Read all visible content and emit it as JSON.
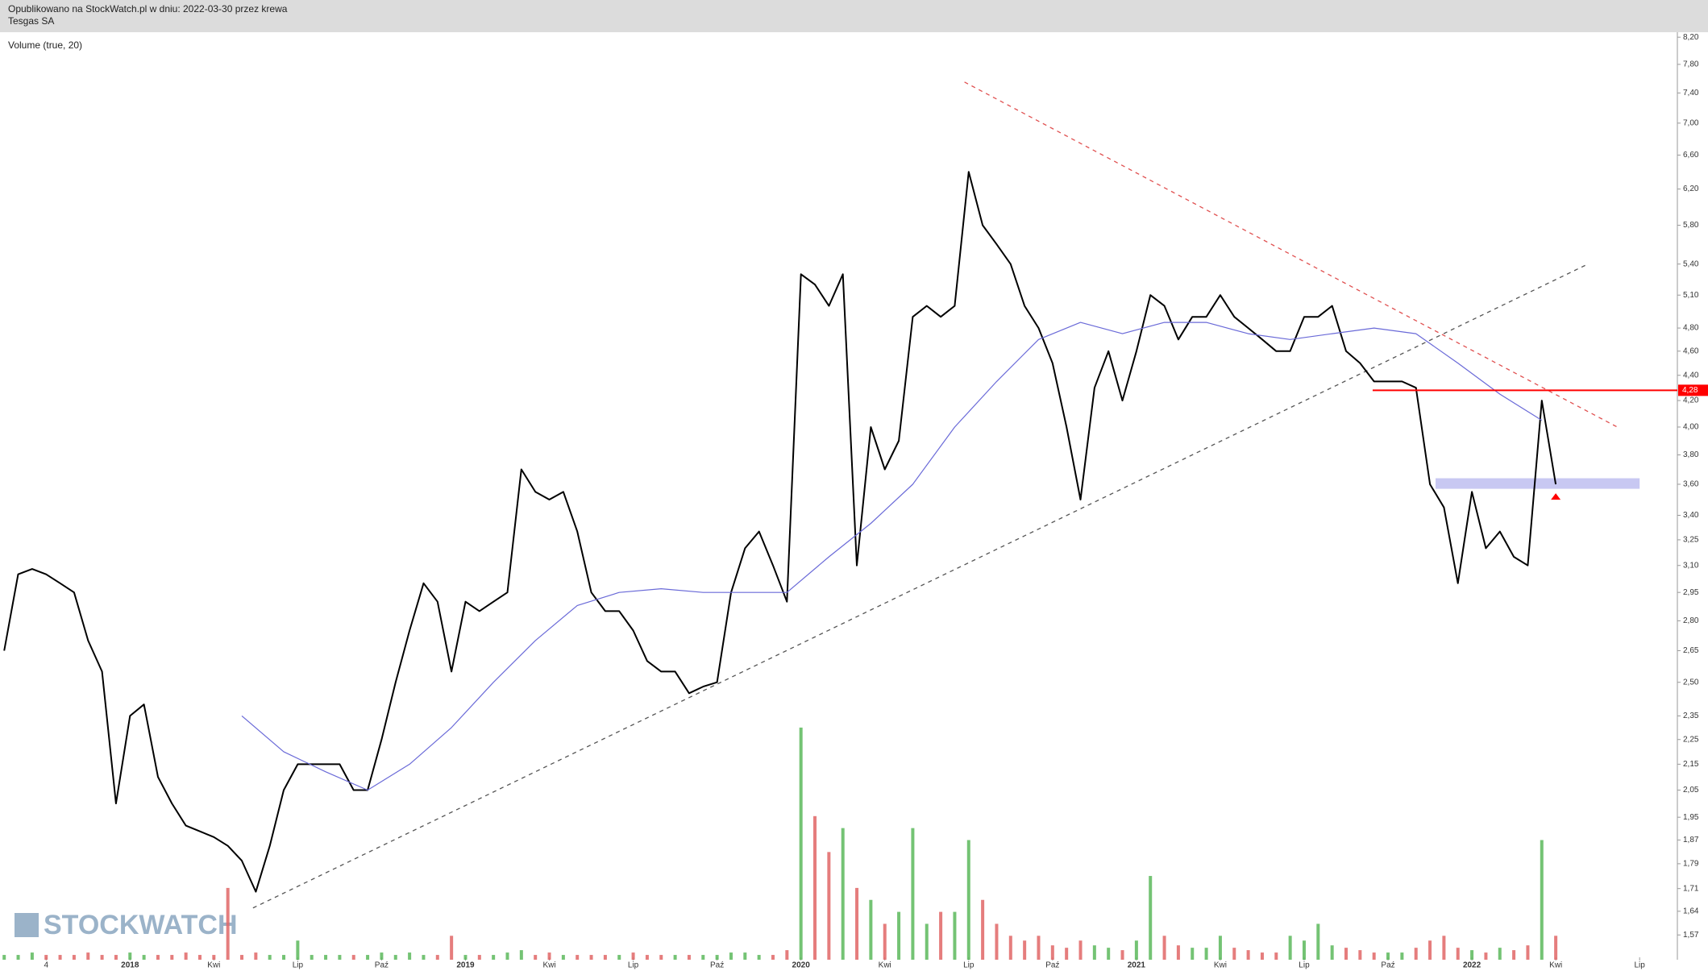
{
  "header": {
    "published": "Opublikowano na StockWatch.pl w dniu: 2022-03-30 przez krewa",
    "ticker": "Tesgas SA"
  },
  "chart_data": {
    "type": "line",
    "indicator_label": "Volume (true, 20)",
    "watermark": "STOCKWATCH",
    "log_scale": true,
    "ylim": [
      1.5,
      8.3
    ],
    "yticks": [
      {
        "value": 8.2,
        "label": "8,20"
      },
      {
        "value": 7.8,
        "label": "7,80"
      },
      {
        "value": 7.4,
        "label": "7,40"
      },
      {
        "value": 7,
        "label": "7,00"
      },
      {
        "value": 6.6,
        "label": "6,60"
      },
      {
        "value": 6.2,
        "label": "6,20"
      },
      {
        "value": 5.8,
        "label": "5,80"
      },
      {
        "value": 5.4,
        "label": "5,40"
      },
      {
        "value": 5.1,
        "label": "5,10"
      },
      {
        "value": 4.8,
        "label": "4,80"
      },
      {
        "value": 4.6,
        "label": "4,60"
      },
      {
        "value": 4.4,
        "label": "4,40"
      },
      {
        "value": 4.2,
        "label": "4,20"
      },
      {
        "value": 4,
        "label": "4,00"
      },
      {
        "value": 3.8,
        "label": "3,80"
      },
      {
        "value": 3.6,
        "label": "3,60"
      },
      {
        "value": 3.4,
        "label": "3,40"
      },
      {
        "value": 3.25,
        "label": "3,25"
      },
      {
        "value": 3.1,
        "label": "3,10"
      },
      {
        "value": 2.95,
        "label": "2,95"
      },
      {
        "value": 2.8,
        "label": "2,80"
      },
      {
        "value": 2.65,
        "label": "2,65"
      },
      {
        "value": 2.5,
        "label": "2,50"
      },
      {
        "value": 2.35,
        "label": "2,35"
      },
      {
        "value": 2.25,
        "label": "2,25"
      },
      {
        "value": 2.15,
        "label": "2,15"
      },
      {
        "value": 2.05,
        "label": "2,05"
      },
      {
        "value": 1.95,
        "label": "1,95"
      },
      {
        "value": 1.87,
        "label": "1,87"
      },
      {
        "value": 1.79,
        "label": "1,79"
      },
      {
        "value": 1.71,
        "label": "1,71"
      },
      {
        "value": 1.64,
        "label": "1,64"
      },
      {
        "value": 1.57,
        "label": "1,57"
      }
    ],
    "xlim": [
      -0.3,
      119.7
    ],
    "xticks": [
      {
        "value": 3,
        "label": "4"
      },
      {
        "value": 9,
        "label": "2018"
      },
      {
        "value": 15,
        "label": "Kwi"
      },
      {
        "value": 21,
        "label": "Lip"
      },
      {
        "value": 27,
        "label": "Paź"
      },
      {
        "value": 33,
        "label": "2019"
      },
      {
        "value": 39,
        "label": "Kwi"
      },
      {
        "value": 45,
        "label": "Lip"
      },
      {
        "value": 51,
        "label": "Paź"
      },
      {
        "value": 57,
        "label": "2020"
      },
      {
        "value": 63,
        "label": "Kwi"
      },
      {
        "value": 69,
        "label": "Lip"
      },
      {
        "value": 75,
        "label": "Paź"
      },
      {
        "value": 81,
        "label": "2021"
      },
      {
        "value": 87,
        "label": "Kwi"
      },
      {
        "value": 93,
        "label": "Lip"
      },
      {
        "value": 99,
        "label": "Paź"
      },
      {
        "value": 105,
        "label": "2022"
      },
      {
        "value": 111,
        "label": "Kwi"
      },
      {
        "value": 117,
        "label": "Lip"
      }
    ],
    "series": [
      {
        "color": "#000000",
        "values": [
          2.65,
          3.05,
          3.08,
          3.05,
          3.0,
          2.95,
          2.7,
          2.55,
          2.0,
          2.35,
          2.4,
          2.1,
          2.0,
          1.92,
          1.9,
          1.88,
          1.85,
          1.8,
          1.7,
          1.85,
          2.05,
          2.15,
          2.15,
          2.15,
          2.15,
          2.05,
          2.05,
          2.25,
          2.5,
          2.75,
          3.0,
          2.9,
          2.55,
          2.9,
          2.85,
          2.9,
          2.95,
          3.7,
          3.55,
          3.5,
          3.55,
          3.3,
          2.95,
          2.85,
          2.85,
          2.75,
          2.6,
          2.55,
          2.55,
          2.45,
          2.48,
          2.5,
          2.95,
          3.2,
          3.3,
          3.1,
          2.9,
          5.3,
          5.2,
          5.0,
          5.3,
          3.1,
          4.0,
          3.7,
          3.9,
          4.9,
          5.0,
          4.9,
          5.0,
          6.4,
          5.8,
          5.6,
          5.4,
          5.0,
          4.8,
          4.5,
          4.0,
          3.5,
          4.3,
          4.6,
          4.2,
          4.6,
          5.1,
          5.0,
          4.7,
          4.9,
          4.9,
          5.1,
          4.9,
          4.8,
          4.7,
          4.6,
          4.6,
          4.9,
          4.9,
          5.0,
          4.6,
          4.5,
          4.35,
          4.35,
          4.35,
          4.3,
          3.6,
          3.45,
          3.0,
          3.55,
          3.2,
          3.3,
          3.15,
          3.1,
          4.2,
          3.6
        ]
      },
      {
        "color": "#6a6ad8",
        "x": [
          17,
          20,
          23,
          26,
          29,
          32,
          35,
          38,
          41,
          44,
          47,
          50,
          53,
          56,
          59,
          62,
          65,
          68,
          71,
          74,
          77,
          80,
          83,
          86,
          89,
          92,
          95,
          98,
          101,
          104,
          107,
          110
        ],
        "values": [
          2.35,
          2.2,
          2.12,
          2.05,
          2.15,
          2.3,
          2.5,
          2.7,
          2.88,
          2.95,
          2.97,
          2.95,
          2.95,
          2.95,
          3.15,
          3.35,
          3.6,
          4.0,
          4.35,
          4.7,
          4.85,
          4.75,
          4.85,
          4.85,
          4.75,
          4.7,
          4.75,
          4.8,
          4.75,
          4.5,
          4.25,
          4.05
        ]
      }
    ],
    "volume": {
      "up_color": "#5cb85c",
      "down_color": "#e06666",
      "y2lim": [
        0,
        100
      ],
      "values": [
        2,
        2,
        3,
        2,
        2,
        2,
        3,
        2,
        2,
        3,
        2,
        2,
        2,
        3,
        2,
        2,
        30,
        2,
        3,
        2,
        2,
        8,
        2,
        2,
        2,
        2,
        2,
        3,
        2,
        3,
        2,
        2,
        10,
        2,
        2,
        2,
        3,
        4,
        2,
        3,
        2,
        2,
        2,
        2,
        2,
        3,
        2,
        2,
        2,
        2,
        2,
        2,
        3,
        3,
        2,
        2,
        4,
        97,
        60,
        45,
        55,
        30,
        25,
        15,
        20,
        55,
        15,
        20,
        20,
        50,
        25,
        15,
        10,
        8,
        10,
        6,
        5,
        8,
        6,
        5,
        4,
        8,
        35,
        10,
        6,
        5,
        5,
        10,
        5,
        4,
        3,
        3,
        10,
        8,
        15,
        6,
        5,
        4,
        3,
        3,
        3,
        5,
        8,
        10,
        5,
        4,
        3,
        5,
        4,
        6,
        50,
        10
      ]
    },
    "trendlines": [
      {
        "color": "#e05050",
        "x": [
          68.7,
          115.4
        ],
        "y": [
          7.55,
          4.0
        ]
      },
      {
        "color": "#555555",
        "x": [
          17.8,
          113.3
        ],
        "y": [
          1.65,
          5.4
        ]
      }
    ],
    "price_marker": {
      "value": {
        "value": 4.28,
        "label": "4,28"
      },
      "x_start": 97.9,
      "color": "#ff0000"
    },
    "band": {
      "x": [
        102.4,
        117
      ],
      "y": [
        3.57,
        3.64
      ],
      "color": "#c8c8f2"
    },
    "arrow": {
      "x": 111,
      "y": 3.52,
      "color": "#ff0000"
    }
  }
}
